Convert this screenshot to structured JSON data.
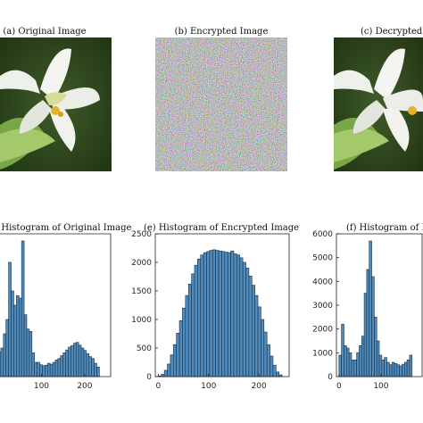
{
  "image_panels": [
    {
      "caption": "(a) Original Image",
      "subject": "white-lily-photo"
    },
    {
      "caption": "(b) Encrypted Image",
      "subject": "noise"
    },
    {
      "caption": "(c) Decrypted Image",
      "subject": "white-lily-photo"
    }
  ],
  "colors": {
    "bar_fill": "#4f8cbd",
    "bar_stroke": "#1a2f44"
  },
  "chart_data": [
    {
      "type": "bar",
      "title": "(d) Histogram of Original Image",
      "xlim": [
        0,
        260
      ],
      "ylim": [
        0,
        3000
      ],
      "xticks": [
        100,
        200
      ],
      "yticks": [],
      "bin_start": 0,
      "bin_width": 6,
      "values": [
        520,
        600,
        900,
        1200,
        2400,
        1800,
        1500,
        1700,
        1650,
        2850,
        1300,
        1000,
        950,
        500,
        300,
        300,
        250,
        230,
        240,
        280,
        260,
        300,
        350,
        380,
        440,
        500,
        560,
        620,
        650,
        700,
        720,
        660,
        600,
        550,
        480,
        420,
        380,
        280,
        200
      ]
    },
    {
      "type": "bar",
      "title": "(e) Histogram of Encrypted Image",
      "xlim": [
        -6,
        260
      ],
      "ylim": [
        0,
        2500
      ],
      "xticks": [
        0,
        100,
        200
      ],
      "yticks": [
        0,
        500,
        1000,
        1500,
        2000,
        2500
      ],
      "bin_start": 0,
      "bin_width": 6,
      "values": [
        10,
        40,
        110,
        220,
        380,
        560,
        760,
        980,
        1200,
        1420,
        1620,
        1800,
        1950,
        2060,
        2130,
        2170,
        2190,
        2210,
        2220,
        2210,
        2200,
        2190,
        2180,
        2170,
        2200,
        2150,
        2130,
        2080,
        2000,
        1900,
        1760,
        1600,
        1420,
        1220,
        1000,
        780,
        560,
        360,
        200,
        80,
        30
      ]
    },
    {
      "type": "bar",
      "title": "(f) Histogram of Decrypted Image",
      "xlim": [
        -6,
        200
      ],
      "ylim": [
        0,
        6000
      ],
      "xticks": [
        0,
        100
      ],
      "yticks": [
        0,
        1000,
        2000,
        3000,
        4000,
        5000,
        6000
      ],
      "bin_start": 0,
      "bin_width": 6,
      "values": [
        900,
        2200,
        1300,
        1200,
        1000,
        700,
        700,
        1000,
        1300,
        1700,
        3500,
        4500,
        5700,
        4200,
        2500,
        1500,
        900,
        700,
        800,
        600,
        500,
        600,
        550,
        500,
        450,
        520,
        600,
        700,
        900
      ]
    }
  ]
}
